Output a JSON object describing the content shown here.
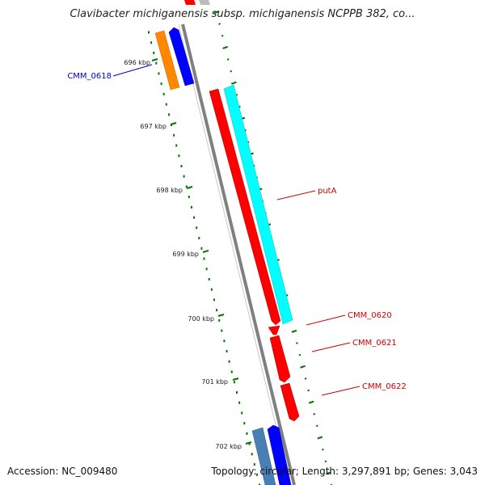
{
  "title": "Clavibacter michiganensis subsp. michiganensis NCPPB 382, co...",
  "accession_text": "Accession: NC_009480",
  "summary_text": "Topology: circular; Length: 3,297,891 bp; Genes: 3,043",
  "colors": {
    "backbone": "#808080",
    "tick": "#007700",
    "label_blue": "#0000cc",
    "label_red": "#cc0000",
    "red_gene": "#ff0000",
    "cyan_gene": "#00ffff",
    "blue_gene": "#0000ff",
    "orange_gene": "#ff8800",
    "steel_gene": "#4a7fb5"
  },
  "ticks": [
    {
      "label": "696 kbp"
    },
    {
      "label": "697 kbp"
    },
    {
      "label": "698 kbp"
    },
    {
      "label": "699 kbp"
    },
    {
      "label": "700 kbp"
    },
    {
      "label": "701 kbp"
    },
    {
      "label": "702 kbp"
    }
  ],
  "gene_labels": [
    {
      "text": "CMM_0618",
      "color": "#0000cc"
    },
    {
      "text": "putA",
      "color": "#cc0000"
    },
    {
      "text": "CMM_0620",
      "color": "#cc0000"
    },
    {
      "text": "CMM_0621",
      "color": "#cc0000"
    },
    {
      "text": "CMM_0622",
      "color": "#cc0000"
    }
  ]
}
